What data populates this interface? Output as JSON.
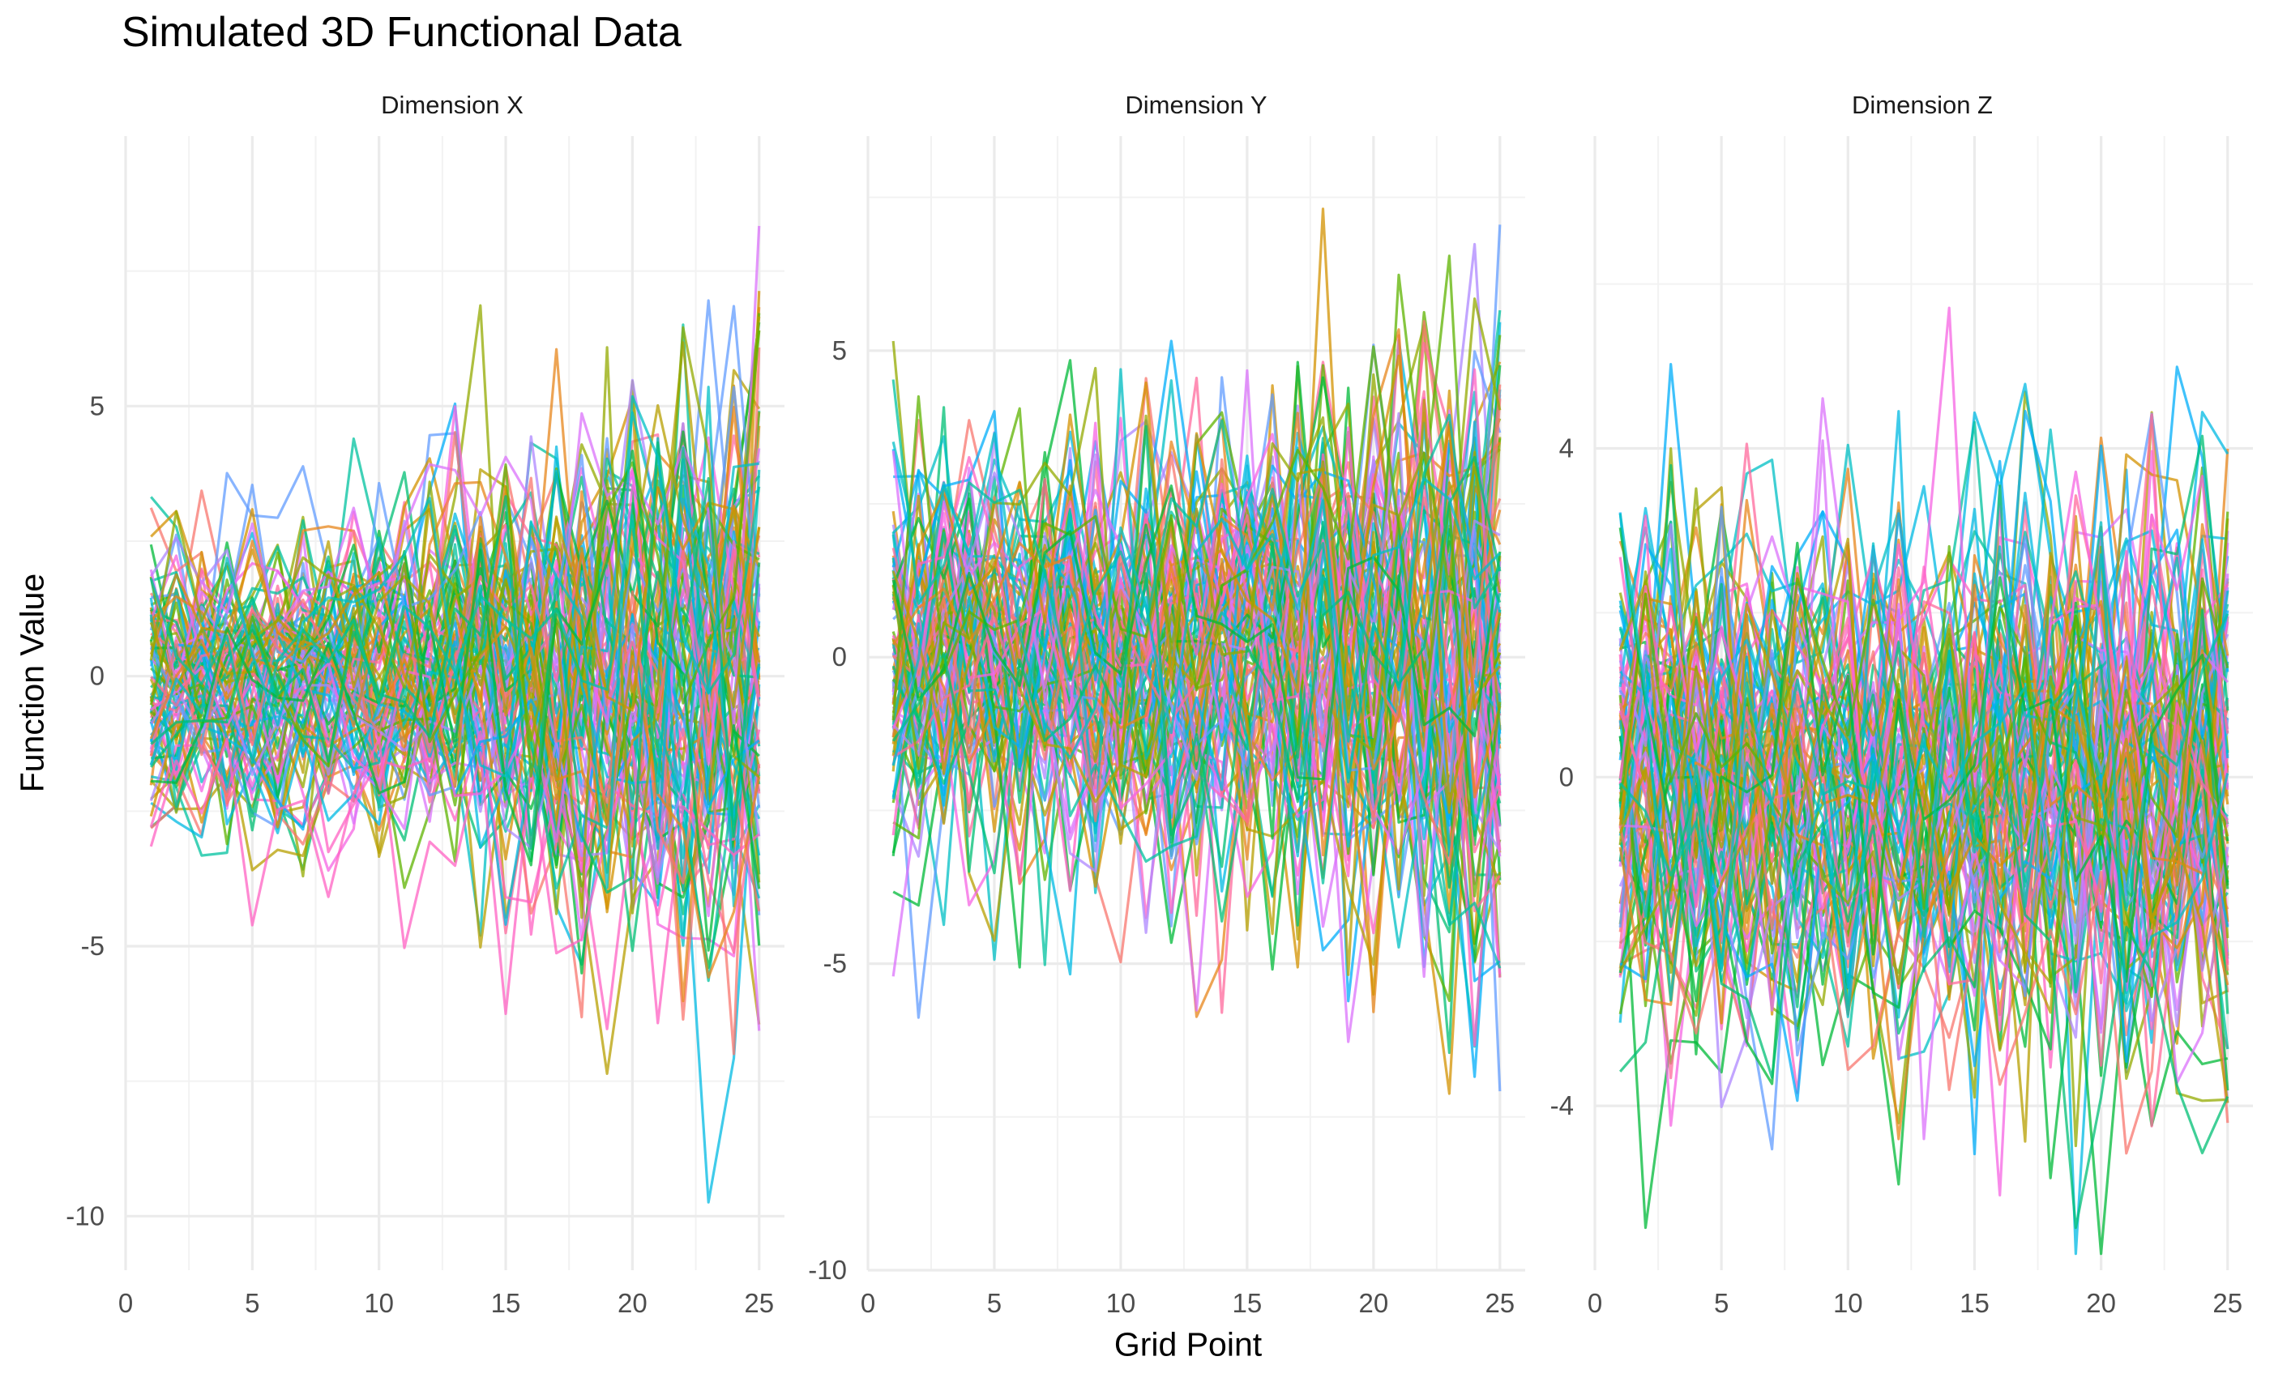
{
  "chart_data": {
    "type": "line",
    "title": "Simulated 3D Functional Data",
    "xlabel": "Grid Point",
    "ylabel": "Function Value",
    "grid": true,
    "legend": "none",
    "series_count_per_panel": 100,
    "series_colors": [
      "#F8766D",
      "#E7861B",
      "#D39200",
      "#B79F00",
      "#93AA00",
      "#5EB300",
      "#00BA38",
      "#00BF74",
      "#00C19F",
      "#00BFC4",
      "#00B9E3",
      "#00ADFA",
      "#619CFF",
      "#AE87FF",
      "#DB72FB",
      "#F564E3",
      "#FF61C3",
      "#FF699C"
    ],
    "panels": [
      {
        "strip_label": "Dimension X",
        "x_range": [
          1,
          25
        ],
        "xlim": [
          0,
          26
        ],
        "x_ticks": [
          "0",
          "5",
          "10",
          "15",
          "20",
          "25"
        ],
        "ylim": [
          -11,
          10
        ],
        "y_ticks": [
          {
            "value": 5,
            "label": "5"
          },
          {
            "value": 0,
            "label": "0"
          },
          {
            "value": -5,
            "label": "-5"
          },
          {
            "value": -10,
            "label": "-10"
          }
        ],
        "band_center": 0,
        "band_sd_start": 1.2,
        "band_sd_end": 3.2,
        "approx_extremes": {
          "max": 9.0,
          "min": -10.2
        }
      },
      {
        "strip_label": "Dimension Y",
        "x_range": [
          1,
          25
        ],
        "xlim": [
          0,
          26
        ],
        "x_ticks": [
          "0",
          "5",
          "10",
          "15",
          "20",
          "25"
        ],
        "ylim": [
          -10,
          8.5
        ],
        "y_ticks": [
          {
            "value": 5,
            "label": "5"
          },
          {
            "value": 0,
            "label": "0"
          },
          {
            "value": -5,
            "label": "-5"
          },
          {
            "value": -10,
            "label": "-10"
          }
        ],
        "band_center": 0,
        "band_sd_start": 1.7,
        "band_sd_end": 3.0,
        "approx_extremes": {
          "max": 7.7,
          "min": -9.2
        }
      },
      {
        "strip_label": "Dimension Z",
        "x_range": [
          1,
          25
        ],
        "xlim": [
          0,
          26
        ],
        "x_ticks": [
          "0",
          "5",
          "10",
          "15",
          "20",
          "25"
        ],
        "ylim": [
          -6,
          7.8
        ],
        "y_ticks": [
          {
            "value": 4,
            "label": "4"
          },
          {
            "value": 0,
            "label": "0"
          },
          {
            "value": -4,
            "label": "-4"
          }
        ],
        "band_center": 0,
        "band_sd_start": 1.6,
        "band_sd_end": 1.9,
        "approx_extremes": {
          "max": 6.8,
          "min": -5.8
        }
      }
    ]
  }
}
